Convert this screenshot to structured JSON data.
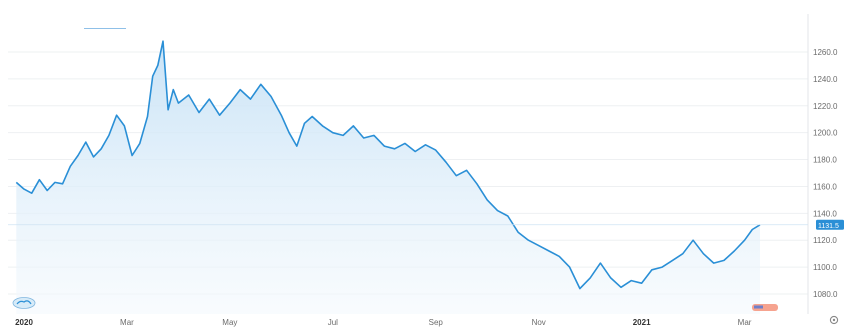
{
  "colors": {
    "line": "#2a8fd6",
    "fill_top": "#c7e2f6",
    "fill_bottom": "#f4f9fd",
    "grid": "#eef0f2",
    "price_tag": "#2a8fd6"
  },
  "icons": {
    "left_logo": "cloud-logo-icon",
    "right_logo": "flag-logo-icon",
    "settings": "gear-icon"
  },
  "chart_data": {
    "type": "area",
    "title": "",
    "xlabel": "",
    "ylabel": "",
    "ylim": [
      1070,
      1272
    ],
    "y_ticks": [
      "1080.0",
      "1100.0",
      "1120.0",
      "1140.0",
      "1160.0",
      "1180.0",
      "1200.0",
      "1220.0",
      "1240.0",
      "1260.0"
    ],
    "x_ticks": [
      {
        "label": "2020",
        "x": 0.0,
        "bold": true
      },
      {
        "label": "Mar",
        "x": 2.0,
        "bold": false
      },
      {
        "label": "May",
        "x": 4.0,
        "bold": false
      },
      {
        "label": "Jul",
        "x": 6.0,
        "bold": false
      },
      {
        "label": "Sep",
        "x": 8.0,
        "bold": false
      },
      {
        "label": "Nov",
        "x": 10.0,
        "bold": false
      },
      {
        "label": "2021",
        "x": 12.0,
        "bold": true
      },
      {
        "label": "Mar",
        "x": 14.0,
        "bold": false
      }
    ],
    "last_value_label": "1131.5",
    "last_value": 1131.5,
    "series": [
      {
        "x": [
          -0.15,
          0.0,
          0.15,
          0.3,
          0.45,
          0.6,
          0.75,
          0.9,
          1.05,
          1.2,
          1.35,
          1.5,
          1.65,
          1.8,
          1.95,
          2.1,
          2.25,
          2.4,
          2.5,
          2.6,
          2.7,
          2.8,
          2.9,
          3.0,
          3.2,
          3.4,
          3.6,
          3.8,
          4.0,
          4.2,
          4.4,
          4.6,
          4.8,
          5.0,
          5.15,
          5.3,
          5.45,
          5.6,
          5.8,
          6.0,
          6.2,
          6.4,
          6.6,
          6.8,
          7.0,
          7.2,
          7.4,
          7.6,
          7.8,
          8.0,
          8.2,
          8.4,
          8.6,
          8.8,
          9.0,
          9.2,
          9.4,
          9.6,
          9.8,
          10.0,
          10.2,
          10.4,
          10.6,
          10.8,
          11.0,
          11.2,
          11.4,
          11.6,
          11.8,
          12.0,
          12.2,
          12.4,
          12.6,
          12.8,
          13.0,
          13.2,
          13.4,
          13.6,
          13.8,
          14.0,
          14.15,
          14.3
        ],
        "values": [
          1163,
          1158,
          1155,
          1165,
          1157,
          1163,
          1162,
          1175,
          1183,
          1193,
          1182,
          1188,
          1198,
          1213,
          1205,
          1183,
          1192,
          1212,
          1242,
          1250,
          1268,
          1217,
          1232,
          1222,
          1228,
          1215,
          1225,
          1213,
          1222,
          1232,
          1225,
          1236,
          1227,
          1213,
          1200,
          1190,
          1207,
          1212,
          1205,
          1200,
          1198,
          1205,
          1196,
          1198,
          1190,
          1188,
          1192,
          1186,
          1191,
          1187,
          1178,
          1168,
          1172,
          1162,
          1150,
          1142,
          1138,
          1126,
          1120,
          1116,
          1112,
          1108,
          1100,
          1084,
          1092,
          1103,
          1092,
          1085,
          1090,
          1088,
          1098,
          1100,
          1105,
          1110,
          1120,
          1110,
          1103,
          1105,
          1112,
          1120,
          1128,
          1131.5
        ]
      }
    ],
    "grid": true,
    "legend": "none"
  }
}
